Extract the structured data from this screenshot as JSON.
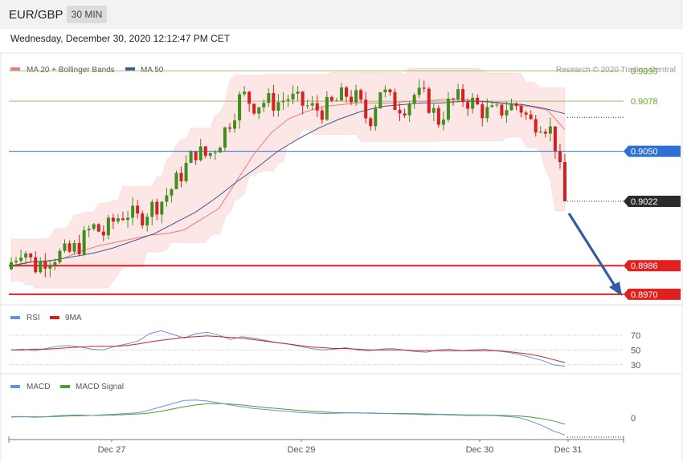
{
  "header": {
    "pair": "EUR/GBP",
    "timeframe": "30 MIN",
    "datetime": "Wednesday, December 30, 2020 12:12:47 PM CET"
  },
  "legend": {
    "ma20": "MA 20 + Bollinger Bands",
    "ma50": "MA 50",
    "credit": "Research © 2020 Trading Central",
    "rsi": "RSI",
    "rsi_ma": "9MA",
    "macd": "MACD",
    "macd_signal": "MACD Signal"
  },
  "colors": {
    "up": "#3f8f1f",
    "down": "#d42020",
    "ma20": "#e87b7b",
    "ma50": "#3a5a96",
    "bands": "#fde4e4",
    "green_level": "#9dc36a",
    "blue_level": "#2f6fd6",
    "red_level": "#e32020",
    "arrow": "#2f5fa0",
    "rsi": "#6b8fd9",
    "macd": "#6b8fd9",
    "macd_signal": "#4aa02a"
  },
  "chart_data": [
    {
      "type": "candlestick",
      "title": "EUR/GBP",
      "ylim": [
        0.8965,
        0.9105
      ],
      "x_labels": [
        "Dec 27",
        "Dec 29",
        "Dec 30",
        "Dec 31"
      ],
      "levels": [
        {
          "value": 0.9095,
          "label": "0.9095",
          "kind": "resistance"
        },
        {
          "value": 0.9078,
          "label": "0.9078",
          "kind": "resistance"
        },
        {
          "value": 0.905,
          "label": "0.9050",
          "kind": "pivot"
        },
        {
          "value": 0.8986,
          "label": "0.8986",
          "kind": "support"
        },
        {
          "value": 0.897,
          "label": "0.8970",
          "kind": "support"
        }
      ],
      "last_price": {
        "value": 0.9022,
        "label": "0.9022"
      },
      "close_path": [
        0.8988,
        0.8997,
        0.8985,
        0.899,
        0.8992,
        0.8993,
        0.8998,
        0.9008,
        0.9004,
        0.9012,
        0.9016,
        0.9012,
        0.9018,
        0.9022,
        0.903,
        0.904,
        0.905,
        0.9047,
        0.9055,
        0.9068,
        0.9082,
        0.9076,
        0.9078,
        0.9077,
        0.908,
        0.9077,
        0.9074,
        0.9073,
        0.9077,
        0.9082,
        0.9079,
        0.9066,
        0.9085,
        0.9077,
        0.9075,
        0.9082,
        0.9079,
        0.9067,
        0.9077,
        0.908,
        0.9077,
        0.9072,
        0.9071,
        0.9075,
        0.9076,
        0.9066,
        0.9067,
        0.906,
        0.9022
      ],
      "ma20_path": [
        0.8986,
        0.8988,
        0.8988,
        0.899,
        0.8994,
        0.8997,
        0.8999,
        0.9001,
        0.9003,
        0.9004,
        0.9006,
        0.9012,
        0.9018,
        0.9033,
        0.9048,
        0.906,
        0.9068,
        0.9072,
        0.9075,
        0.9076,
        0.9077,
        0.9077,
        0.9077,
        0.9078,
        0.9078,
        0.9079,
        0.9079,
        0.9078,
        0.9077,
        0.9076,
        0.9075,
        0.9073,
        0.9062
      ],
      "ma50_path": [
        0.8986,
        0.8988,
        0.8989,
        0.8991,
        0.8993,
        0.8996,
        0.9,
        0.9004,
        0.901,
        0.9016,
        0.9024,
        0.9033,
        0.9041,
        0.905,
        0.9057,
        0.9063,
        0.9068,
        0.9072,
        0.9075,
        0.9076,
        0.9077,
        0.9077,
        0.9078,
        0.9078,
        0.9077,
        0.9076,
        0.9074,
        0.9071
      ]
    },
    {
      "type": "line",
      "title": "RSI",
      "ylim": [
        20,
        85
      ],
      "ticks": [
        "70",
        "50",
        "30"
      ],
      "tick_values": [
        70,
        50,
        30
      ],
      "series": [
        {
          "name": "RSI",
          "values": [
            50,
            51,
            49,
            52,
            55,
            56,
            54,
            51,
            50,
            55,
            58,
            62,
            72,
            76,
            71,
            66,
            72,
            74,
            70,
            64,
            68,
            66,
            63,
            60,
            58,
            55,
            52,
            50,
            51,
            53,
            50,
            49,
            51,
            52,
            50,
            48,
            47,
            50,
            51,
            49,
            50,
            51,
            49,
            47,
            44,
            40,
            36,
            30,
            28
          ]
        },
        {
          "name": "9MA",
          "values": [
            50,
            50,
            51,
            51,
            52,
            53,
            54,
            55,
            55,
            55,
            56,
            58,
            61,
            63,
            65,
            67,
            68,
            69,
            68,
            67,
            66,
            64,
            62,
            60,
            58,
            56,
            54,
            53,
            52,
            52,
            51,
            50,
            50,
            50,
            50,
            49,
            49,
            49,
            49,
            49,
            49,
            49,
            49,
            48,
            46,
            44,
            41,
            37,
            33
          ]
        }
      ]
    },
    {
      "type": "line",
      "title": "MACD",
      "ylim": [
        -0.0008,
        0.001
      ],
      "ticks": [
        "0"
      ],
      "tick_values": [
        0
      ],
      "series": [
        {
          "name": "MACD",
          "values": [
            5e-05,
            6e-05,
            3e-05,
            5e-05,
            9e-05,
            0.00011,
            0.00012,
            0.0001,
            0.00013,
            0.00015,
            0.00018,
            0.00021,
            0.00032,
            0.00045,
            0.00058,
            0.0007,
            0.00072,
            0.00068,
            0.0006,
            0.00052,
            0.00045,
            0.00038,
            0.00034,
            0.0003,
            0.00026,
            0.00022,
            0.0002,
            0.00018,
            0.00019,
            0.0002,
            0.00021,
            0.00019,
            0.00018,
            0.00017,
            0.00016,
            0.00015,
            0.00013,
            0.00014,
            0.00012,
            0.00011,
            0.0001,
            0.00011,
            9e-05,
            6e-05,
            2e-05,
            -0.00012,
            -0.0003,
            -0.00052,
            -0.00068
          ]
        },
        {
          "name": "MACD Signal",
          "values": [
            4e-05,
            5e-05,
            5e-05,
            5e-05,
            6e-05,
            8e-05,
            9e-05,
            0.0001,
            0.00011,
            0.00012,
            0.00014,
            0.00016,
            0.0002,
            0.00027,
            0.00036,
            0.00045,
            0.00052,
            0.00057,
            0.00058,
            0.00056,
            0.00052,
            0.00047,
            0.00042,
            0.00038,
            0.00034,
            0.0003,
            0.00027,
            0.00024,
            0.00022,
            0.00021,
            0.0002,
            0.0002,
            0.00019,
            0.00018,
            0.00018,
            0.00017,
            0.00016,
            0.00015,
            0.00014,
            0.00013,
            0.00012,
            0.00012,
            0.00011,
            0.0001,
            8e-05,
            4e-05,
            -3e-05,
            -0.00012,
            -0.00025
          ]
        }
      ]
    }
  ]
}
